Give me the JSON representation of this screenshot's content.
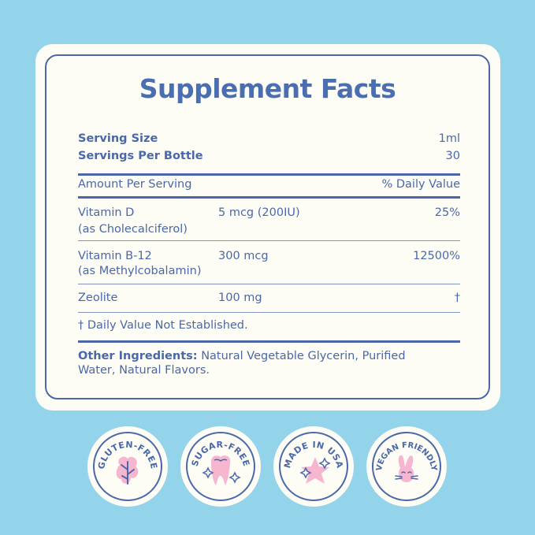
{
  "title": "Supplement Facts",
  "serving_size": {
    "label": "Serving Size",
    "value": "1ml"
  },
  "servings_per_bottle": {
    "label": "Servings Per Bottle",
    "value": "30"
  },
  "header": {
    "amount": "Amount Per Serving",
    "dv": "% Daily Value"
  },
  "nutrients": [
    {
      "name": "Vitamin D",
      "sub": "(as Cholecalciferol)",
      "amount": "5 mcg (200IU)",
      "dv": "25%"
    },
    {
      "name": "Vitamin B-12",
      "sub": "(as Methylcobalamin)",
      "amount": "300 mcg",
      "dv": "12500%"
    },
    {
      "name": "Zeolite",
      "amount": "100 mg",
      "dv": "†"
    }
  ],
  "footnote": "† Daily Value Not Established.",
  "other_ingredients": {
    "label": "Other Ingredients:",
    "line1": "Natural Vegetable Glycerin, Purified",
    "line2": "Water, Natural Flavors."
  },
  "badges": [
    {
      "label": "GLUTEN-FREE",
      "icon": "leaf-icon"
    },
    {
      "label": "SUGAR-FREE",
      "icon": "tooth-icon"
    },
    {
      "label": "MADE IN USA",
      "icon": "star-icon"
    },
    {
      "label": "VEGAN FRIENDLY",
      "icon": "bunny-icon"
    }
  ],
  "colors": {
    "background": "#93d4ea",
    "card": "#fdfdf6",
    "ink": "#4a68a8",
    "pink": "#f6b6d0"
  }
}
